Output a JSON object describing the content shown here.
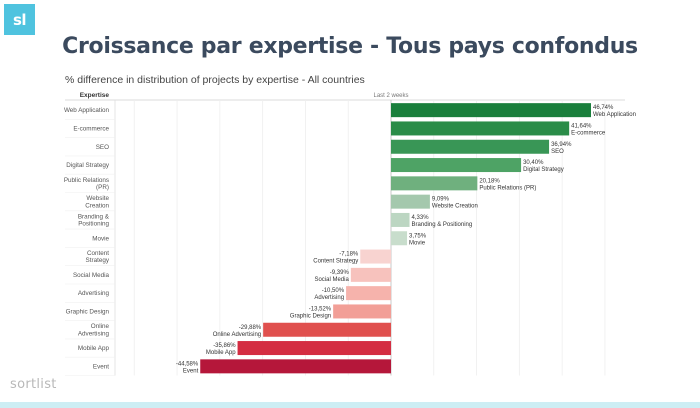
{
  "logo": {
    "text": "sl"
  },
  "title": "Croissance par expertise - Tous pays confondus",
  "subtitle": "% difference in distribution of projects by expertise - All countries",
  "footer": {
    "brand": "sortlist"
  },
  "colors": {
    "accent": "#4fc3df",
    "title": "#3b4a5e",
    "positive_dark": "#1a7f3c",
    "positive_light": "#c5dccb",
    "negative_light": "#f7cfcc",
    "negative_dark": "#b5173a"
  },
  "chart_data": {
    "type": "bar",
    "orientation": "horizontal",
    "header_left": "Expertise",
    "header_column": "Last 2 weeks",
    "categories": [
      [
        "Web Application"
      ],
      [
        "E-commerce"
      ],
      [
        "SEO"
      ],
      [
        "Digital Strategy"
      ],
      [
        "Public Relations",
        "(PR)"
      ],
      [
        "Website",
        "Creation"
      ],
      [
        "Branding &",
        "Positioning"
      ],
      [
        "Movie"
      ],
      [
        "Content",
        "Strategy"
      ],
      [
        "Social Media"
      ],
      [
        "Advertising"
      ],
      [
        "Graphic Design"
      ],
      [
        "Online",
        "Advertising"
      ],
      [
        "Mobile App"
      ],
      [
        "Event"
      ]
    ],
    "values": [
      46.74,
      41.64,
      36.94,
      30.4,
      20.18,
      9.09,
      4.33,
      3.75,
      -7.18,
      -9.39,
      -10.5,
      -13.52,
      -29.88,
      -35.86,
      -44.58
    ],
    "value_labels": [
      "46,74%",
      "41,64%",
      "36,94%",
      "30,40%",
      "20,18%",
      "9,09%",
      "4,33%",
      "3,75%",
      "-7,18%",
      "-9,39%",
      "-10,50%",
      "-13,52%",
      "-29,88%",
      "-35,86%",
      "-44,58%"
    ],
    "name_labels": [
      "Web Application",
      "E-commerce",
      "SEO",
      "Digital Strategy",
      "Public Relations (PR)",
      "Website Creation",
      "Branding & Positioning",
      "Movie",
      "Content Strategy",
      "Social Media",
      "Advertising",
      "Graphic Design",
      "Online Advertising",
      "Mobile App",
      "Event"
    ],
    "bar_colors": [
      "#1a7f3c",
      "#2a8c48",
      "#399656",
      "#4ea365",
      "#6fb07e",
      "#a4c8ad",
      "#bcd6c2",
      "#c8ddcc",
      "#f8d3d0",
      "#f7c2bd",
      "#f6b3ac",
      "#f29f97",
      "#e0504e",
      "#d42d42",
      "#b5173a"
    ],
    "xlim": [
      -50,
      50
    ],
    "grid": true,
    "legend": "none"
  }
}
